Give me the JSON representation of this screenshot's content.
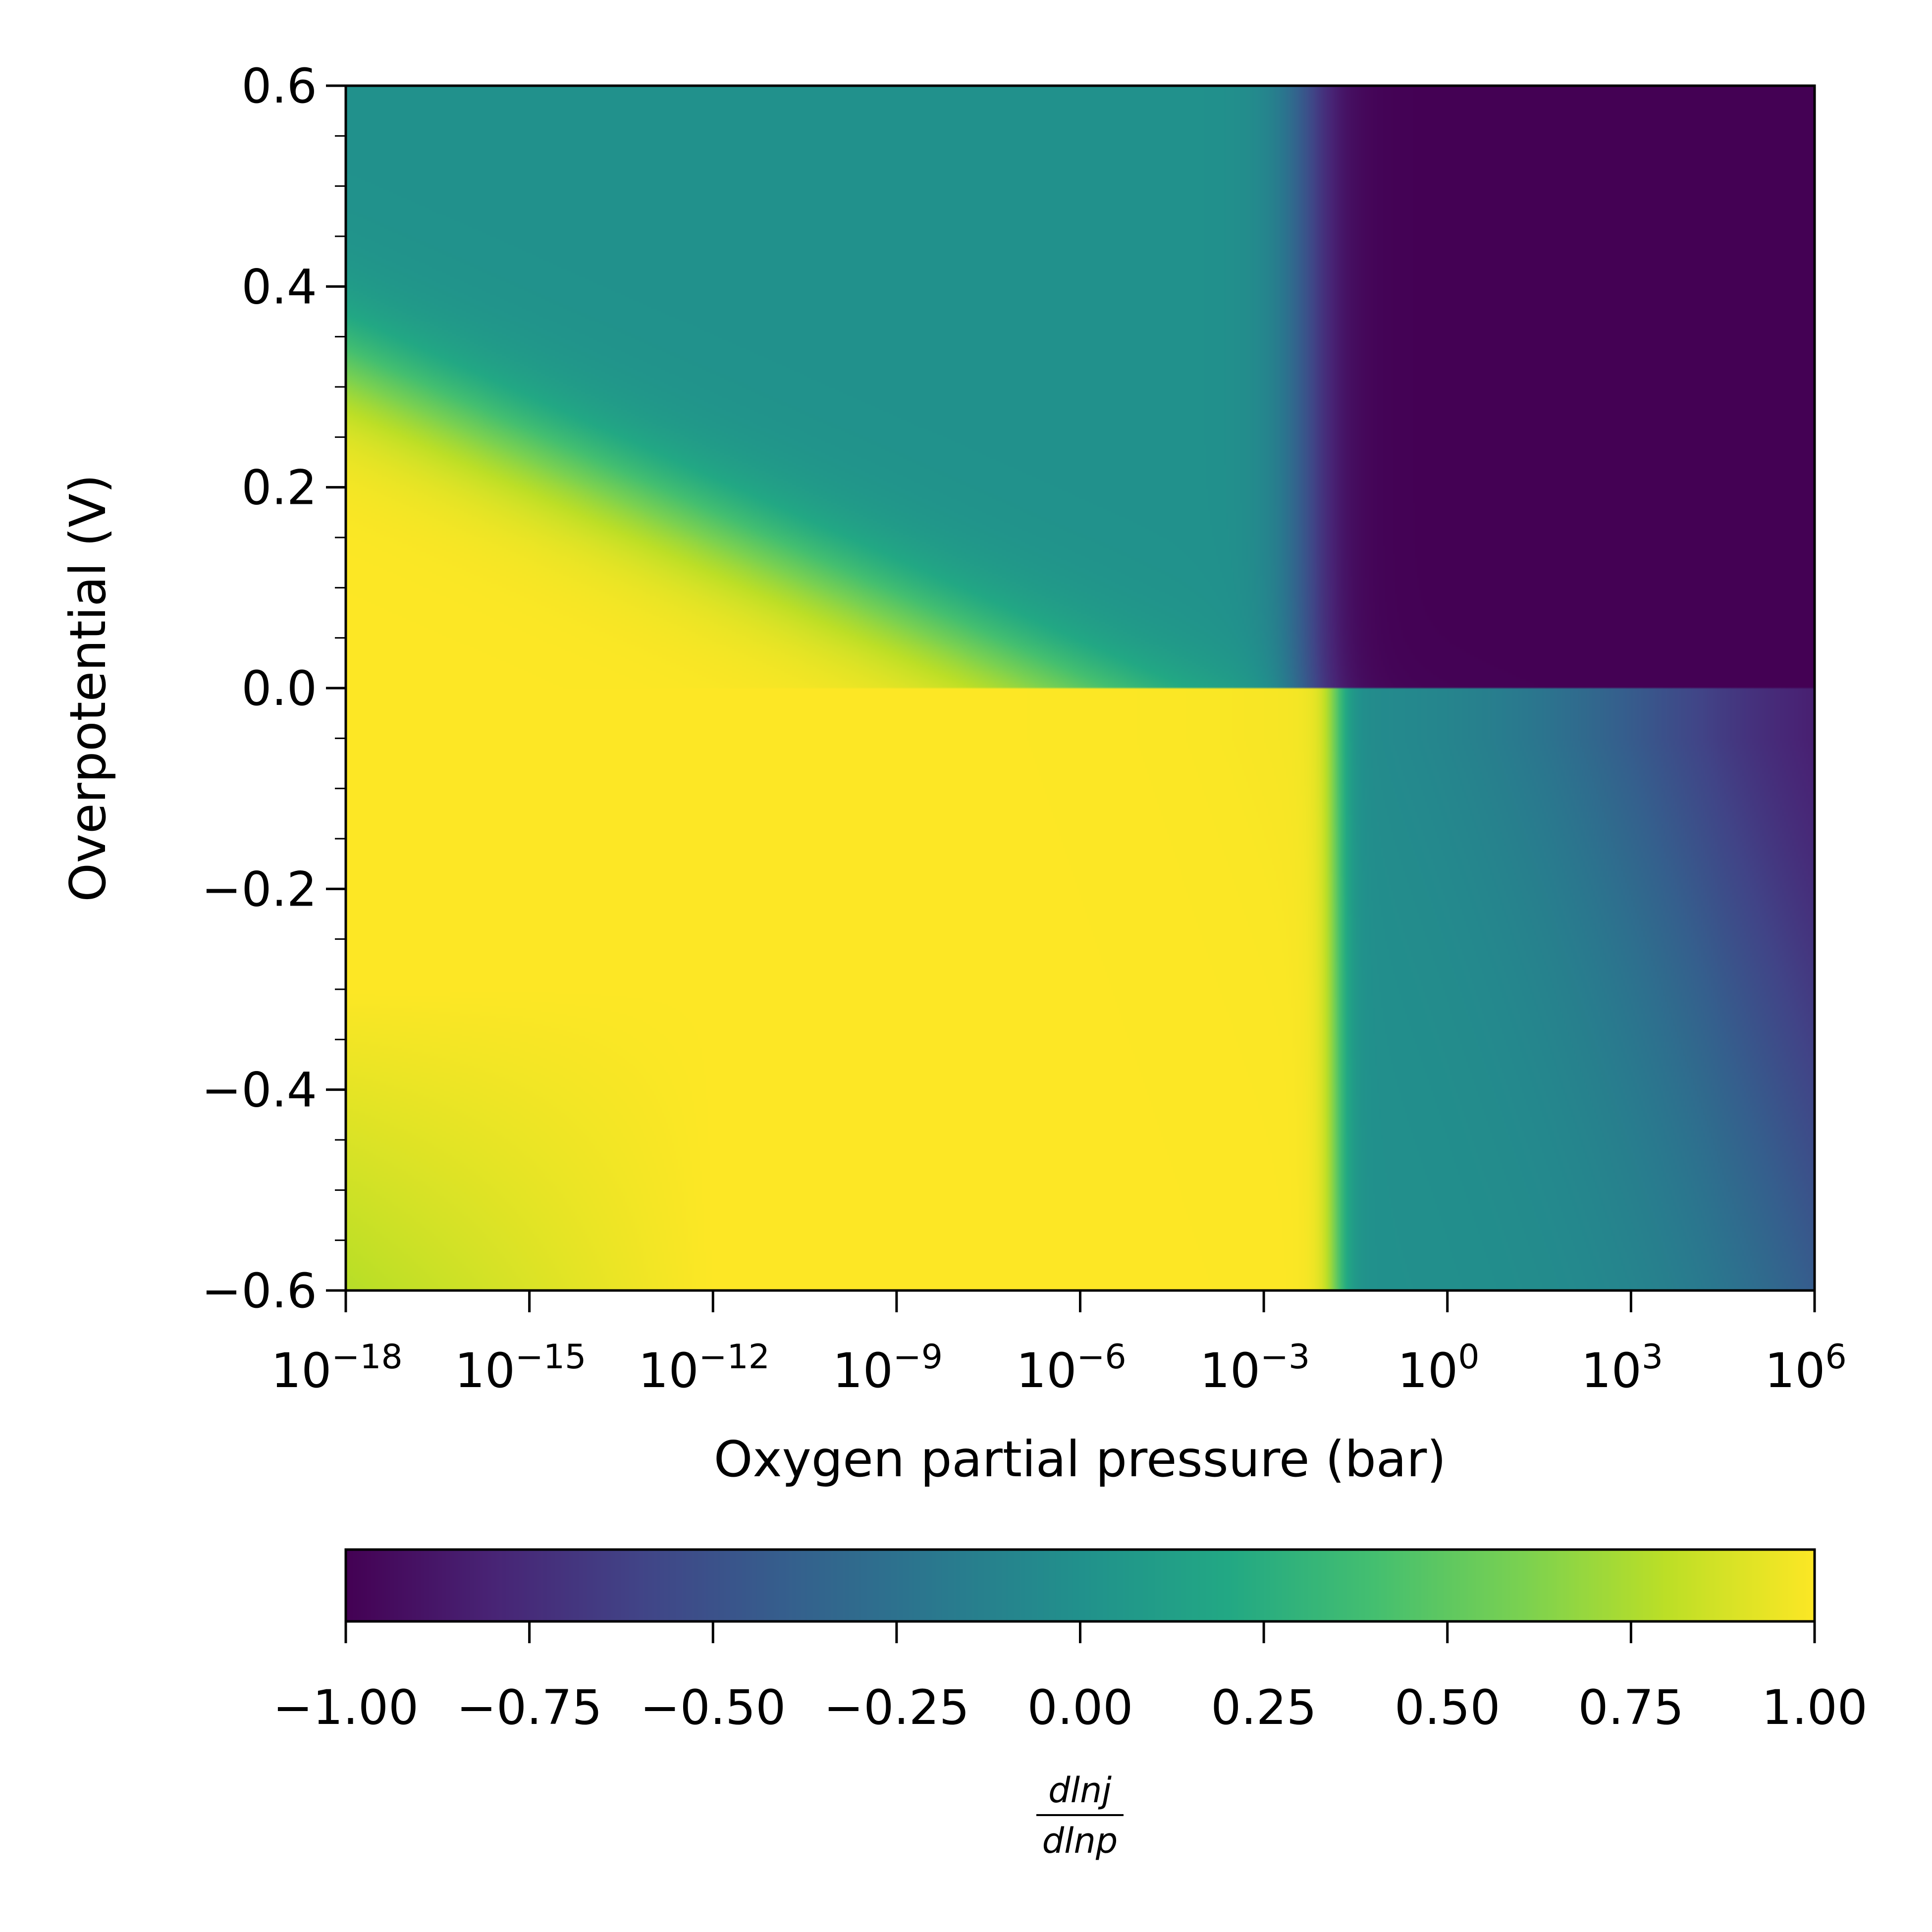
{
  "chart_data": {
    "type": "heatmap",
    "colormap": "viridis",
    "x": {
      "label": "Oxygen partial pressure (bar)",
      "scale": "log",
      "range": [
        1e-18,
        1000000.0
      ],
      "ticks": [
        {
          "value": 1e-18,
          "base": "10",
          "exp": "−18"
        },
        {
          "value": 1e-15,
          "base": "10",
          "exp": "−15"
        },
        {
          "value": 1e-12,
          "base": "10",
          "exp": "−12"
        },
        {
          "value": 1e-09,
          "base": "10",
          "exp": "−9"
        },
        {
          "value": 1e-06,
          "base": "10",
          "exp": "−6"
        },
        {
          "value": 0.001,
          "base": "10",
          "exp": "−3"
        },
        {
          "value": 1,
          "base": "10",
          "exp": "0"
        },
        {
          "value": 1000.0,
          "base": "10",
          "exp": "3"
        },
        {
          "value": 1000000.0,
          "base": "10",
          "exp": "6"
        }
      ]
    },
    "y": {
      "label": "Overpotential (V)",
      "scale": "linear",
      "range": [
        -0.6,
        0.6
      ],
      "ticks": [
        {
          "value": 0.6,
          "label": "0.6"
        },
        {
          "value": 0.4,
          "label": "0.4"
        },
        {
          "value": 0.2,
          "label": "0.2"
        },
        {
          "value": 0.0,
          "label": "0.0"
        },
        {
          "value": -0.2,
          "label": "−0.2"
        },
        {
          "value": -0.4,
          "label": "−0.4"
        },
        {
          "value": -0.6,
          "label": "−0.6"
        }
      ]
    },
    "colorbar": {
      "orientation": "horizontal",
      "position": "bottom",
      "range": [
        -1.0,
        1.0
      ],
      "label_numerator": "dlnj",
      "label_denominator": "dlnp",
      "ticks": [
        {
          "value": -1.0,
          "label": "−1.00"
        },
        {
          "value": -0.75,
          "label": "−0.75"
        },
        {
          "value": -0.5,
          "label": "−0.50"
        },
        {
          "value": -0.25,
          "label": "−0.25"
        },
        {
          "value": 0.0,
          "label": "0.00"
        },
        {
          "value": 0.25,
          "label": "0.25"
        },
        {
          "value": 0.5,
          "label": "0.50"
        },
        {
          "value": 0.75,
          "label": "0.75"
        },
        {
          "value": 1.0,
          "label": "1.00"
        }
      ]
    },
    "regions": [
      {
        "description": "low pressure / cathodic region",
        "value": 1.0
      },
      {
        "description": "high pressure region",
        "value": -1.0
      },
      {
        "description": "anodic intermediate region",
        "value": 0.0
      },
      {
        "description": "cathodic high-pressure region",
        "value": 0.0
      }
    ],
    "grid": false
  }
}
